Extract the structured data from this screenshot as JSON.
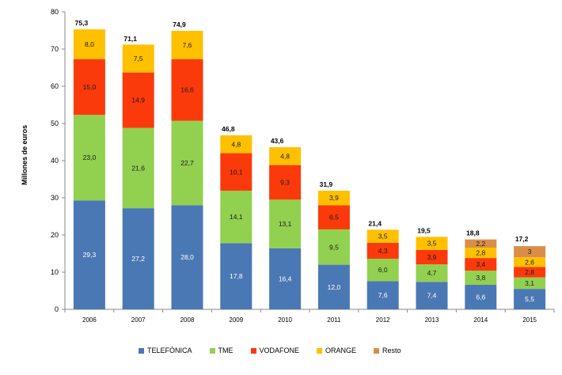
{
  "chart_data": {
    "type": "bar",
    "stacked": true,
    "ylabel": "Millones de euros",
    "xlabel": "",
    "ylim": [
      0,
      80
    ],
    "yticks": [
      "0",
      "10",
      "20",
      "30",
      "40",
      "50",
      "60",
      "70",
      "80"
    ],
    "categories": [
      "2006",
      "2007",
      "2008",
      "2009",
      "2010",
      "2011",
      "2012",
      "2013",
      "2014",
      "2015"
    ],
    "series": [
      {
        "name": "TELEFÓNICA",
        "color": "#4a78b4",
        "values": [
          29.3,
          27.2,
          28.0,
          17.8,
          16.4,
          12.0,
          7.6,
          7.4,
          6.6,
          5.5
        ],
        "labels": [
          "29,3",
          "27,2",
          "28,0",
          "17,8",
          "16,4",
          "12,0",
          "7,6",
          "7,4",
          "6,6",
          "5,5"
        ],
        "label_color": "#ffffff"
      },
      {
        "name": "TME",
        "color": "#92d050",
        "values": [
          23.0,
          21.6,
          22.7,
          14.1,
          13.1,
          9.5,
          6.0,
          4.7,
          3.8,
          3.1
        ],
        "labels": [
          "23,0",
          "21,6",
          "22,7",
          "14,1",
          "13,1",
          "9,5",
          "6,0",
          "4,7",
          "3,8",
          "3,1"
        ],
        "label_color": "#1a1a1a"
      },
      {
        "name": "VODAFONE",
        "color": "#fb3a0c",
        "values": [
          15.0,
          14.9,
          16.6,
          10.1,
          9.3,
          6.5,
          4.3,
          3.9,
          3.4,
          2.8
        ],
        "labels": [
          "15,0",
          "14,9",
          "16,6",
          "10,1",
          "9,3",
          "6,5",
          "4,3",
          "3,9",
          "3,4",
          "2,8"
        ],
        "label_color": "#1a1a1a"
      },
      {
        "name": "ORANGE",
        "color": "#ffc000",
        "values": [
          8.0,
          7.5,
          7.6,
          4.8,
          4.8,
          3.9,
          3.5,
          3.5,
          2.8,
          2.6
        ],
        "labels": [
          "8,0",
          "7,5",
          "7,6",
          "4,8",
          "4,8",
          "3,9",
          "3,5",
          "3,5",
          "2,8",
          "2,6"
        ],
        "label_color": "#1a1a1a"
      },
      {
        "name": "Resto",
        "color": "#d98e48",
        "values": [
          0,
          0,
          0,
          0,
          0,
          0,
          0,
          0,
          2.2,
          3.0
        ],
        "labels": [
          "",
          "",
          "",
          "",
          "",
          "",
          "",
          "",
          "2,2",
          "3"
        ],
        "label_color": "#1a1a1a"
      }
    ],
    "totals": [
      75.3,
      71.1,
      74.9,
      46.8,
      43.6,
      31.9,
      21.4,
      19.5,
      18.8,
      17.2
    ],
    "total_labels": [
      "75,3",
      "71,1",
      "74,9",
      "46,8",
      "43,6",
      "31,9",
      "21,4",
      "19,5",
      "18,8",
      "17,2"
    ],
    "grid": false,
    "legend_position": "bottom"
  }
}
